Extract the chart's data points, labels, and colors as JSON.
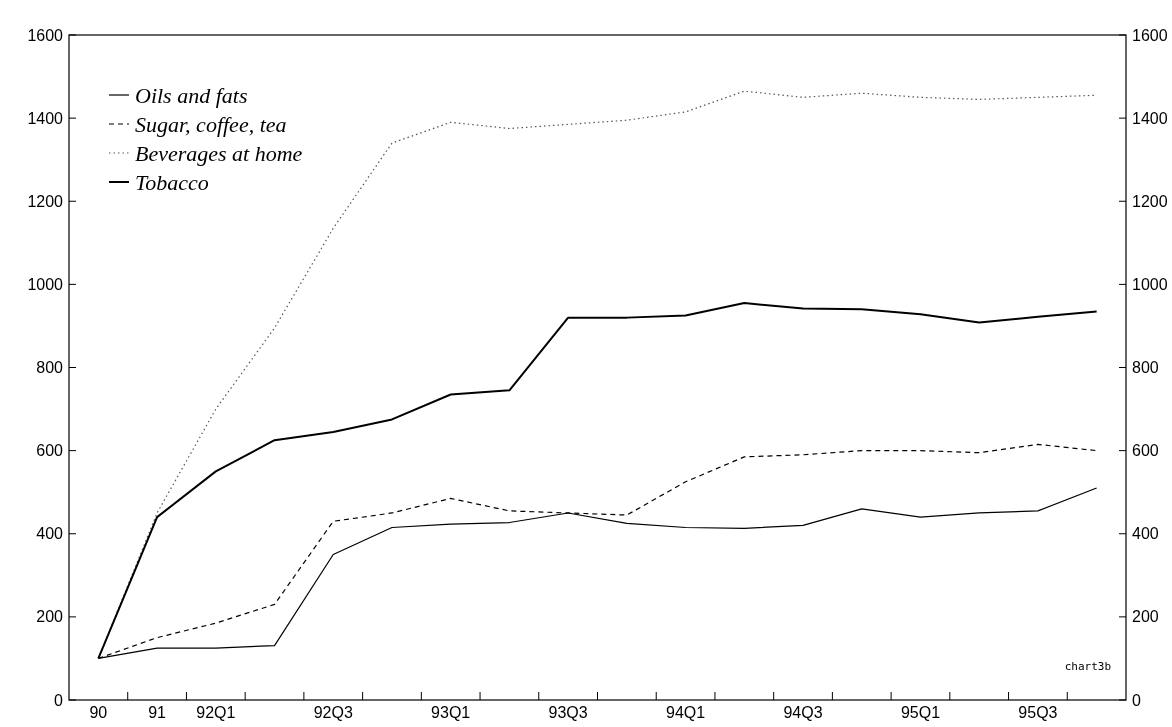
{
  "chart_data": {
    "type": "line",
    "categories": [
      "90",
      "91",
      "92Q1",
      null,
      "92Q3",
      null,
      "93Q1",
      null,
      "93Q3",
      null,
      "94Q1",
      null,
      "94Q3",
      null,
      "95Q1",
      null,
      "95Q3",
      null
    ],
    "series": [
      {
        "name": "Oils and fats",
        "color": "#000000",
        "line_style": "solid",
        "values": [
          100,
          125,
          125,
          131,
          350,
          415,
          423,
          427,
          450,
          425,
          415,
          413,
          420,
          460,
          440,
          450,
          455,
          510
        ]
      },
      {
        "name": "Sugar, coffee, tea",
        "color": "#000000",
        "line_style": "dashed",
        "values": [
          100,
          150,
          185,
          230,
          430,
          450,
          485,
          455,
          450,
          445,
          525,
          585,
          590,
          600,
          600,
          595,
          615,
          600
        ]
      },
      {
        "name": "Beverages at home",
        "color": "#555555",
        "line_style": "dotted",
        "values": [
          100,
          450,
          700,
          895,
          1135,
          1340,
          1390,
          1375,
          1385,
          1395,
          1415,
          1465,
          1450,
          1460,
          1450,
          1445,
          1450,
          1455
        ]
      },
      {
        "name": "Tobacco",
        "color": "#000000",
        "line_style": "solid",
        "values": [
          100,
          440,
          550,
          625,
          645,
          675,
          735,
          745,
          920,
          920,
          925,
          955,
          942,
          940,
          928,
          908,
          922,
          935
        ]
      }
    ],
    "ylim": [
      0,
      1600
    ],
    "yticks": [
      0,
      200,
      400,
      600,
      800,
      1000,
      1200,
      1400,
      1600
    ],
    "y2lim": [
      0,
      1600
    ],
    "y2ticks": [
      0,
      200,
      400,
      600,
      800,
      1000,
      1200,
      1400,
      1600
    ],
    "legend": "top left",
    "grid": false,
    "marker": "none",
    "annotations": [
      "chart3b"
    ]
  }
}
